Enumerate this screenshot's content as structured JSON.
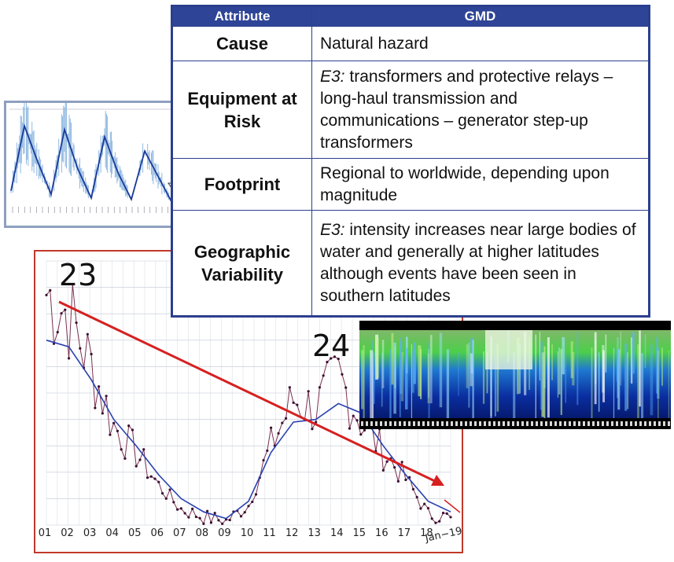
{
  "table": {
    "headers": [
      "Attribute",
      "GMD"
    ],
    "rows": [
      {
        "attribute": "Cause",
        "value_prefix": "",
        "value": "Natural hazard"
      },
      {
        "attribute": "Equipment at Risk",
        "value_prefix": "E3:",
        "value": " transformers and protective relays – long-haul transmission and communications – generator step-up transformers"
      },
      {
        "attribute": "Footprint",
        "value_prefix": "",
        "value": "Regional to worldwide, depending upon magnitude"
      },
      {
        "attribute": "Geographic Variability",
        "value_prefix": "E3:",
        "value": " intensity increases near large bodies of water and generally at higher latitudes although events have been seen in southern latitudes"
      }
    ]
  },
  "labels": {
    "cycle_23": "23",
    "cycle_24": "24"
  },
  "colors": {
    "table_header": "#2e4496",
    "chart_border": "#c0392b",
    "trend_arrow": "#d62020",
    "monthly_line": "#7a3050",
    "smoothed_line": "#2840b0"
  },
  "chart_data": [
    {
      "type": "line",
      "categories": [
        "01",
        "02",
        "03",
        "04",
        "05",
        "06",
        "07",
        "08",
        "09",
        "10",
        "11",
        "12",
        "13",
        "14",
        "15",
        "16",
        "17",
        "18",
        "Jan−19"
      ],
      "series": [
        {
          "values": [
            175,
            160,
            120,
            75,
            55,
            30,
            12,
            6,
            3,
            15,
            60,
            95,
            88,
            112,
            80,
            55,
            35,
            8,
            6
          ]
        },
        {
          "values": [
            140,
            135,
            110,
            80,
            60,
            38,
            20,
            10,
            5,
            18,
            55,
            78,
            80,
            92,
            85,
            60,
            38,
            18,
            10
          ]
        }
      ],
      "ylim": [
        0,
        200
      ]
    },
    {
      "type": "line",
      "series": [
        {
          "values": [
            20,
            110,
            60,
            15,
            105,
            50,
            10,
            95,
            45,
            8,
            75,
            40,
            5
          ]
        }
      ]
    },
    {
      "type": "heatmap"
    }
  ]
}
